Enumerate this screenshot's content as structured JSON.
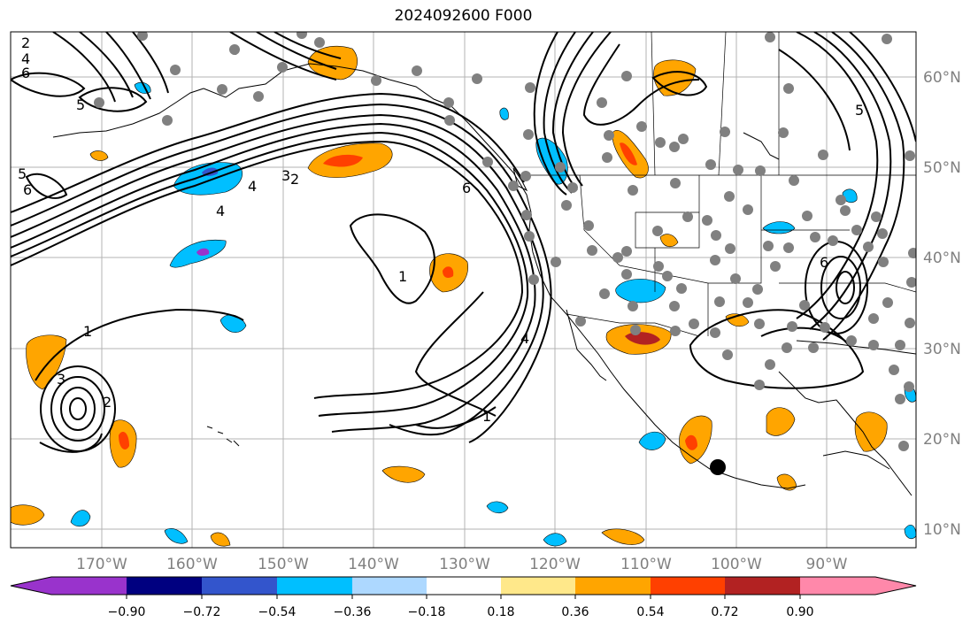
{
  "title": "2024092600 F000",
  "lat_ticks": [
    "60°N",
    "50°N",
    "40°N",
    "30°N",
    "20°N",
    "10°N"
  ],
  "lon_ticks": [
    "170°W",
    "160°W",
    "150°W",
    "140°W",
    "130°W",
    "120°W",
    "110°W",
    "100°W",
    "90°W"
  ],
  "colorbar": {
    "ticks": [
      "−0.90",
      "−0.72",
      "−0.54",
      "−0.36",
      "−0.18",
      "0.18",
      "0.36",
      "0.54",
      "0.72",
      "0.90"
    ],
    "colors": [
      "#9933cc",
      "#000080",
      "#3355cc",
      "#00bfff",
      "#add8ff",
      "#ffffff",
      "#ffe88a",
      "#ffa500",
      "#ff4000",
      "#b22222",
      "#ff88aa"
    ]
  },
  "contour_labels": [
    "1",
    "2",
    "3",
    "4",
    "5",
    "6"
  ],
  "shade_colors": {
    "orange": "#ffa500",
    "light_orange": "#ffe88a",
    "red": "#ff4000",
    "dark_red": "#b22222",
    "cyan": "#00bfff",
    "light_blue": "#add8ff",
    "blue": "#3355cc",
    "purple": "#9933cc"
  },
  "station_color": "#808080",
  "marker_color": "#000000"
}
